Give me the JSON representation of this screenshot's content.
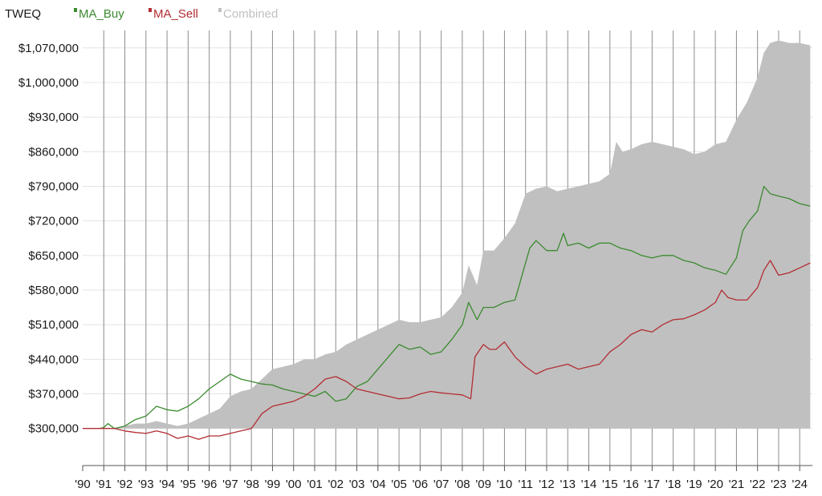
{
  "chart_data": {
    "type": "area",
    "title": "TWEQ",
    "legend_position": "top-left",
    "grid": true,
    "x_ticks": [
      "'90",
      "'91",
      "'92",
      "'93",
      "'94",
      "'95",
      "'96",
      "'97",
      "'98",
      "'99",
      "'00",
      "'01",
      "'02",
      "'03",
      "'04",
      "'05",
      "'06",
      "'07",
      "'08",
      "'09",
      "'10",
      "'11",
      "'12",
      "'13",
      "'14",
      "'15",
      "'16",
      "'17",
      "'18",
      "'19",
      "'20",
      "'21",
      "'22",
      "'23",
      "'24"
    ],
    "xlim": [
      1990,
      2024.6
    ],
    "y_ticks": [
      "$300,000",
      "$370,000",
      "$440,000",
      "$510,000",
      "$580,000",
      "$650,000",
      "$720,000",
      "$790,000",
      "$860,000",
      "$930,000",
      "$1,000,000",
      "$1,070,000"
    ],
    "y_tick_values": [
      300000,
      370000,
      440000,
      510000,
      580000,
      650000,
      720000,
      790000,
      860000,
      930000,
      1000000,
      1070000
    ],
    "ylim": [
      225000,
      1115000
    ],
    "series": [
      {
        "name": "MA_Buy",
        "color": "#3a8a2e",
        "style": "line",
        "x": [
          1990.8,
          1991.0,
          1991.2,
          1991.5,
          1992.0,
          1992.5,
          1993.0,
          1993.5,
          1994.0,
          1994.5,
          1995.0,
          1995.5,
          1996.0,
          1996.5,
          1997.0,
          1997.5,
          1998.0,
          1998.5,
          1999.0,
          1999.5,
          2000.0,
          2000.5,
          2001.0,
          2001.5,
          2002.0,
          2002.5,
          2003.0,
          2003.5,
          2004.0,
          2004.5,
          2005.0,
          2005.5,
          2006.0,
          2006.5,
          2007.0,
          2007.5,
          2008.0,
          2008.3,
          2008.7,
          2009.0,
          2009.5,
          2010.0,
          2010.5,
          2010.9,
          2011.2,
          2011.5,
          2012.0,
          2012.5,
          2012.8,
          2013.0,
          2013.5,
          2014.0,
          2014.5,
          2015.0,
          2015.5,
          2016.0,
          2016.5,
          2017.0,
          2017.5,
          2018.0,
          2018.5,
          2019.0,
          2019.5,
          2020.0,
          2020.5,
          2021.0,
          2021.3,
          2021.6,
          2022.0,
          2022.3,
          2022.6,
          2023.0,
          2023.5,
          2024.0,
          2024.5
        ],
        "y": [
          300000,
          302000,
          310000,
          300000,
          305000,
          318000,
          325000,
          345000,
          338000,
          335000,
          345000,
          360000,
          380000,
          395000,
          410000,
          400000,
          395000,
          390000,
          388000,
          380000,
          375000,
          370000,
          365000,
          375000,
          355000,
          360000,
          385000,
          395000,
          420000,
          445000,
          470000,
          460000,
          465000,
          450000,
          455000,
          480000,
          510000,
          555000,
          520000,
          545000,
          545000,
          555000,
          560000,
          620000,
          665000,
          680000,
          660000,
          660000,
          695000,
          670000,
          675000,
          665000,
          675000,
          675000,
          665000,
          660000,
          650000,
          645000,
          650000,
          650000,
          640000,
          635000,
          625000,
          620000,
          612000,
          645000,
          700000,
          720000,
          740000,
          790000,
          775000,
          770000,
          765000,
          755000,
          750000
        ]
      },
      {
        "name": "MA_Sell",
        "color": "#b22d33",
        "style": "line",
        "x": [
          1990.0,
          1990.5,
          1991.0,
          1991.5,
          1992.0,
          1992.5,
          1993.0,
          1993.5,
          1994.0,
          1994.5,
          1995.0,
          1995.5,
          1996.0,
          1996.5,
          1997.0,
          1997.5,
          1998.0,
          1998.5,
          1999.0,
          1999.5,
          2000.0,
          2000.5,
          2001.0,
          2001.5,
          2002.0,
          2002.5,
          2003.0,
          2003.5,
          2004.0,
          2004.5,
          2005.0,
          2005.5,
          2006.0,
          2006.5,
          2007.0,
          2007.5,
          2008.0,
          2008.4,
          2008.6,
          2009.0,
          2009.3,
          2009.6,
          2010.0,
          2010.5,
          2011.0,
          2011.5,
          2012.0,
          2012.5,
          2013.0,
          2013.5,
          2014.0,
          2014.5,
          2015.0,
          2015.5,
          2016.0,
          2016.5,
          2017.0,
          2017.5,
          2018.0,
          2018.5,
          2019.0,
          2019.5,
          2020.0,
          2020.3,
          2020.6,
          2021.0,
          2021.5,
          2022.0,
          2022.3,
          2022.6,
          2023.0,
          2023.5,
          2024.0,
          2024.5
        ],
        "y": [
          300000,
          300000,
          300000,
          300000,
          295000,
          292000,
          290000,
          295000,
          290000,
          280000,
          285000,
          278000,
          285000,
          285000,
          290000,
          295000,
          300000,
          330000,
          345000,
          350000,
          355000,
          365000,
          380000,
          400000,
          405000,
          395000,
          380000,
          375000,
          370000,
          365000,
          360000,
          362000,
          370000,
          375000,
          372000,
          370000,
          368000,
          360000,
          445000,
          470000,
          460000,
          460000,
          475000,
          445000,
          425000,
          410000,
          420000,
          425000,
          430000,
          420000,
          425000,
          430000,
          455000,
          470000,
          490000,
          500000,
          495000,
          510000,
          520000,
          522000,
          530000,
          540000,
          555000,
          580000,
          565000,
          560000,
          560000,
          585000,
          620000,
          640000,
          610000,
          615000,
          625000,
          635000
        ]
      },
      {
        "name": "Combined",
        "color": "#c0c0c0",
        "style": "area",
        "baseline": 300000,
        "x": [
          1990.8,
          1991.0,
          1991.5,
          1992.0,
          1992.5,
          1993.0,
          1993.5,
          1994.0,
          1994.5,
          1995.0,
          1995.5,
          1996.0,
          1996.5,
          1997.0,
          1997.5,
          1998.0,
          1998.5,
          1999.0,
          1999.5,
          2000.0,
          2000.5,
          2001.0,
          2001.5,
          2002.0,
          2002.5,
          2003.0,
          2003.5,
          2004.0,
          2004.5,
          2005.0,
          2005.5,
          2006.0,
          2006.5,
          2007.0,
          2007.5,
          2008.0,
          2008.3,
          2008.7,
          2009.0,
          2009.5,
          2010.0,
          2010.5,
          2011.0,
          2011.5,
          2012.0,
          2012.5,
          2013.0,
          2013.5,
          2014.0,
          2014.5,
          2015.0,
          2015.3,
          2015.6,
          2016.0,
          2016.5,
          2017.0,
          2017.5,
          2018.0,
          2018.5,
          2019.0,
          2019.5,
          2020.0,
          2020.5,
          2021.0,
          2021.5,
          2022.0,
          2022.3,
          2022.6,
          2023.0,
          2023.5,
          2024.0,
          2024.5
        ],
        "y": [
          300000,
          300000,
          300000,
          305000,
          310000,
          310000,
          315000,
          310000,
          305000,
          310000,
          320000,
          330000,
          340000,
          365000,
          375000,
          380000,
          400000,
          420000,
          425000,
          430000,
          440000,
          440000,
          450000,
          455000,
          470000,
          480000,
          490000,
          500000,
          510000,
          520000,
          515000,
          515000,
          520000,
          525000,
          545000,
          575000,
          630000,
          590000,
          660000,
          660000,
          685000,
          715000,
          775000,
          785000,
          790000,
          780000,
          785000,
          790000,
          795000,
          800000,
          815000,
          880000,
          860000,
          865000,
          875000,
          880000,
          875000,
          870000,
          865000,
          855000,
          860000,
          875000,
          880000,
          925000,
          960000,
          1010000,
          1060000,
          1080000,
          1085000,
          1080000,
          1080000,
          1075000
        ]
      }
    ]
  }
}
